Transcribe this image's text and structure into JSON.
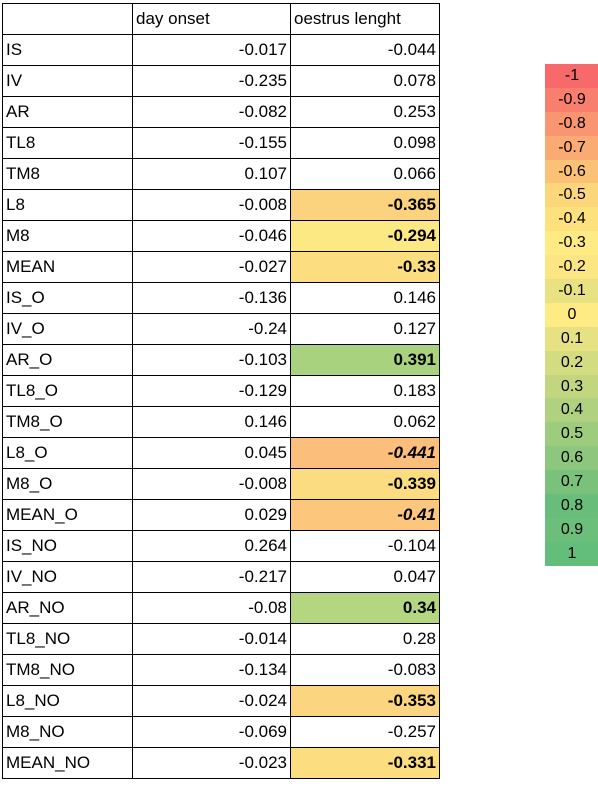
{
  "table": {
    "headers": [
      "",
      "day onset",
      "oestrus lenght"
    ],
    "rows": [
      {
        "label": "IS",
        "day_onset": "-0.017",
        "oestrus": "-0.044",
        "color": "",
        "bold": false,
        "italic": false
      },
      {
        "label": "IV",
        "day_onset": "-0.235",
        "oestrus": "0.078",
        "color": "",
        "bold": false,
        "italic": false
      },
      {
        "label": "AR",
        "day_onset": "-0.082",
        "oestrus": "0.253",
        "color": "",
        "bold": false,
        "italic": false
      },
      {
        "label": "TL8",
        "day_onset": "-0.155",
        "oestrus": "0.098",
        "color": "",
        "bold": false,
        "italic": false
      },
      {
        "label": "TM8",
        "day_onset": "0.107",
        "oestrus": "0.066",
        "color": "",
        "bold": false,
        "italic": false
      },
      {
        "label": "L8",
        "day_onset": "-0.008",
        "oestrus": "-0.365",
        "color": "#fbd37e",
        "bold": true,
        "italic": false
      },
      {
        "label": "M8",
        "day_onset": "-0.046",
        "oestrus": "-0.294",
        "color": "#fde983",
        "bold": true,
        "italic": false
      },
      {
        "label": "MEAN",
        "day_onset": "-0.027",
        "oestrus": "-0.33",
        "color": "#fcde81",
        "bold": true,
        "italic": false
      },
      {
        "label": "IS_O",
        "day_onset": "-0.136",
        "oestrus": "0.146",
        "color": "",
        "bold": false,
        "italic": false
      },
      {
        "label": "IV_O",
        "day_onset": "-0.24",
        "oestrus": "0.127",
        "color": "",
        "bold": false,
        "italic": false
      },
      {
        "label": "AR_O",
        "day_onset": "-0.103",
        "oestrus": "0.391",
        "color": "#a9d27f",
        "bold": true,
        "italic": false
      },
      {
        "label": "TL8_O",
        "day_onset": "-0.129",
        "oestrus": "0.183",
        "color": "",
        "bold": false,
        "italic": false
      },
      {
        "label": "TM8_O",
        "day_onset": "0.146",
        "oestrus": "0.062",
        "color": "",
        "bold": false,
        "italic": false
      },
      {
        "label": "L8_O",
        "day_onset": "0.045",
        "oestrus": "-0.441",
        "color": "#fbbe7b",
        "bold": true,
        "italic": true
      },
      {
        "label": "M8_O",
        "day_onset": "-0.008",
        "oestrus": "-0.339",
        "color": "#fcdc81",
        "bold": true,
        "italic": false
      },
      {
        "label": "MEAN_O",
        "day_onset": "0.029",
        "oestrus": "-0.41",
        "color": "#fcc77d",
        "bold": true,
        "italic": true
      },
      {
        "label": "IS_NO",
        "day_onset": "0.264",
        "oestrus": "-0.104",
        "color": "",
        "bold": false,
        "italic": false
      },
      {
        "label": "IV_NO",
        "day_onset": "-0.217",
        "oestrus": "0.047",
        "color": "",
        "bold": false,
        "italic": false
      },
      {
        "label": "AR_NO",
        "day_onset": "-0.08",
        "oestrus": "0.34",
        "color": "#b5d680",
        "bold": true,
        "italic": false
      },
      {
        "label": "TL8_NO",
        "day_onset": "-0.014",
        "oestrus": "0.28",
        "color": "",
        "bold": false,
        "italic": false
      },
      {
        "label": "TM8_NO",
        "day_onset": "-0.134",
        "oestrus": "-0.083",
        "color": "",
        "bold": false,
        "italic": false
      },
      {
        "label": "L8_NO",
        "day_onset": "-0.024",
        "oestrus": "-0.353",
        "color": "#fbd57f",
        "bold": true,
        "italic": false
      },
      {
        "label": "M8_NO",
        "day_onset": "-0.069",
        "oestrus": "-0.257",
        "color": "",
        "bold": false,
        "italic": false
      },
      {
        "label": "MEAN_NO",
        "day_onset": "-0.023",
        "oestrus": "-0.331",
        "color": "#fcde81",
        "bold": true,
        "italic": false
      }
    ]
  },
  "color_scale": [
    {
      "value": "-1",
      "color": "#f8696b"
    },
    {
      "value": "-0.9",
      "color": "#f87f6e"
    },
    {
      "value": "-0.8",
      "color": "#f99571"
    },
    {
      "value": "-0.7",
      "color": "#faab74"
    },
    {
      "value": "-0.6",
      "color": "#fbc177"
    },
    {
      "value": "-0.5",
      "color": "#fcd67a"
    },
    {
      "value": "-0.4",
      "color": "#fde17d"
    },
    {
      "value": "-0.3",
      "color": "#feeb83"
    },
    {
      "value": "-0.2",
      "color": "#fbe683"
    },
    {
      "value": "-0.1",
      "color": "#e8e283"
    },
    {
      "value": "0",
      "color": "#ffeb84"
    },
    {
      "value": "0.1",
      "color": "#e6e182"
    },
    {
      "value": "0.2",
      "color": "#d4dc81"
    },
    {
      "value": "0.3",
      "color": "#c2d680"
    },
    {
      "value": "0.4",
      "color": "#b0d17f"
    },
    {
      "value": "0.5",
      "color": "#9ecc7e"
    },
    {
      "value": "0.6",
      "color": "#8cc77d"
    },
    {
      "value": "0.7",
      "color": "#7ac27c"
    },
    {
      "value": "0.8",
      "color": "#68bd7b"
    },
    {
      "value": "0.9",
      "color": "#6cbf7b"
    },
    {
      "value": "1",
      "color": "#63be7b"
    }
  ]
}
